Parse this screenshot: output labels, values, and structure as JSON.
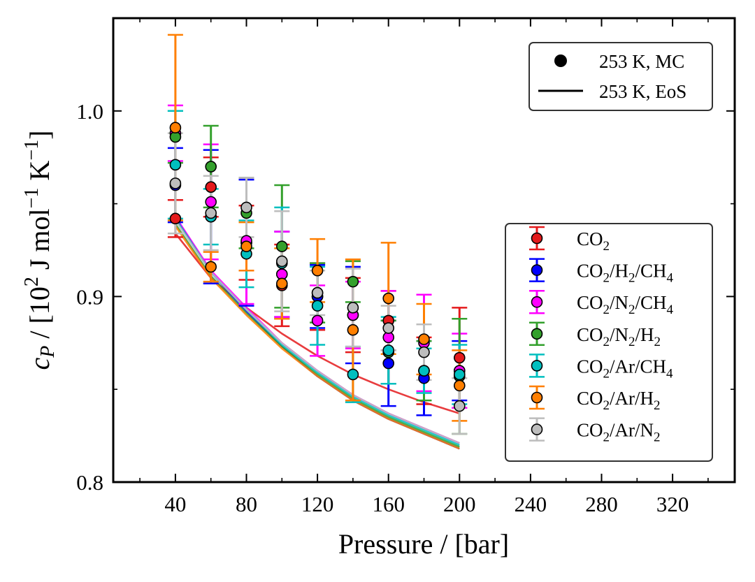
{
  "chart_data": {
    "type": "scatter",
    "xlabel": "Pressure / [bar]",
    "ylabel": "c_P / [10^2 J mol^-1 K^-1]",
    "ylabel_parts": {
      "var": "c",
      "var_sub": "P",
      "open": "/ [10",
      "pow": "2",
      "unit": " J mol",
      "pow2": "−1",
      "unit2": " K",
      "pow3": "−1",
      "close": "]"
    },
    "xlim": [
      5,
      355
    ],
    "ylim": [
      0.8,
      1.05
    ],
    "xticks": [
      40,
      80,
      120,
      160,
      200,
      240,
      280,
      320
    ],
    "xtick_labels": [
      "40",
      "80",
      "120",
      "160",
      "200",
      "240",
      "280",
      "320"
    ],
    "yticks": [
      0.8,
      0.9,
      1.0
    ],
    "ytick_labels": [
      "0.8",
      "0.9",
      "1.0"
    ],
    "legend_style": {
      "entries": [
        {
          "marker": "filled-circle",
          "label": "253 K, MC",
          "color": "#000000"
        },
        {
          "marker": "line",
          "label": "253 K, EoS",
          "color": "#000000"
        }
      ],
      "placement": "top-right"
    },
    "series": [
      {
        "name": "CO₂",
        "label_main": "CO",
        "sub": [
          "2"
        ],
        "label_parts": [
          "CO",
          "2"
        ],
        "color": "#e41a1c",
        "x": [
          40,
          60,
          80,
          100,
          120,
          140,
          160,
          180,
          200
        ],
        "y": [
          0.942,
          0.959,
          0.929,
          0.906,
          0.9,
          0.89,
          0.887,
          0.86,
          0.867
        ],
        "err": [
          0.01,
          0.016,
          0.02,
          0.022,
          0.018,
          0.02,
          0.016,
          0.018,
          0.027
        ],
        "eos": [
          0.934,
          0.91,
          0.894,
          0.88,
          0.868,
          0.858,
          0.85,
          0.843,
          0.837
        ]
      },
      {
        "name": "CO₂/H₂/CH₄",
        "label_parts": [
          "CO",
          "2",
          "/H",
          "2",
          "/CH",
          "4"
        ],
        "color": "#0000ff",
        "x": [
          40,
          60,
          80,
          100,
          120,
          140,
          160,
          180,
          200
        ],
        "y": [
          0.96,
          0.943,
          0.929,
          0.912,
          0.9,
          0.89,
          0.864,
          0.856,
          0.86
        ],
        "err": [
          0.02,
          0.036,
          0.034,
          0.023,
          0.017,
          0.026,
          0.023,
          0.02,
          0.016
        ],
        "eos": [
          0.943,
          0.913,
          0.892,
          0.873,
          0.857,
          0.844,
          0.834,
          0.826,
          0.818
        ]
      },
      {
        "name": "CO₂/N₂/CH₄",
        "label_parts": [
          "CO",
          "2",
          "/N",
          "2",
          "/CH",
          "4"
        ],
        "color": "#ff00ff",
        "x": [
          40,
          60,
          80,
          100,
          120,
          140,
          160,
          180,
          200
        ],
        "y": [
          0.988,
          0.951,
          0.93,
          0.912,
          0.887,
          0.89,
          0.878,
          0.875,
          0.86
        ],
        "err": [
          0.015,
          0.031,
          0.034,
          0.023,
          0.019,
          0.018,
          0.025,
          0.026,
          0.02
        ],
        "eos": [
          0.943,
          0.914,
          0.894,
          0.875,
          0.86,
          0.847,
          0.837,
          0.829,
          0.821
        ]
      },
      {
        "name": "CO₂/N₂/H₂",
        "label_parts": [
          "CO",
          "2",
          "/N",
          "2",
          "/H",
          "2"
        ],
        "color": "#33a02c",
        "x": [
          40,
          60,
          80,
          100,
          120,
          140,
          160,
          180,
          200
        ],
        "y": [
          0.986,
          0.97,
          0.945,
          0.927,
          0.902,
          0.908,
          0.87,
          0.86,
          0.857
        ],
        "err": [
          0.014,
          0.022,
          0.019,
          0.033,
          0.016,
          0.011,
          0.017,
          0.016,
          0.031
        ],
        "eos": [
          0.939,
          0.911,
          0.891,
          0.873,
          0.858,
          0.845,
          0.835,
          0.827,
          0.819
        ]
      },
      {
        "name": "CO₂/Ar/CH₄",
        "label_parts": [
          "CO",
          "2",
          "/Ar/CH",
          "4"
        ],
        "color": "#00bfbf",
        "x": [
          40,
          60,
          80,
          100,
          120,
          140,
          160,
          180,
          200
        ],
        "y": [
          0.971,
          0.943,
          0.923,
          0.918,
          0.895,
          0.858,
          0.871,
          0.86,
          0.858
        ],
        "err": [
          0.029,
          0.015,
          0.018,
          0.03,
          0.021,
          0.015,
          0.018,
          0.012,
          0.016
        ],
        "eos": [
          0.942,
          0.913,
          0.893,
          0.874,
          0.859,
          0.846,
          0.836,
          0.828,
          0.82
        ]
      },
      {
        "name": "CO₂/Ar/H₂",
        "label_parts": [
          "CO",
          "2",
          "/Ar/H",
          "2"
        ],
        "color": "#ff7f00",
        "x": [
          40,
          60,
          80,
          100,
          120,
          140,
          160,
          180,
          200
        ],
        "y": [
          0.991,
          0.916,
          0.927,
          0.907,
          0.914,
          0.882,
          0.899,
          0.877,
          0.852
        ],
        "err": [
          0.05,
          0.008,
          0.013,
          0.019,
          0.017,
          0.038,
          0.03,
          0.019,
          0.019
        ],
        "eos": [
          0.938,
          0.91,
          0.89,
          0.872,
          0.857,
          0.844,
          0.834,
          0.826,
          0.818
        ]
      },
      {
        "name": "CO₂/Ar/N₂",
        "label_parts": [
          "CO",
          "2",
          "/Ar/N",
          "2"
        ],
        "color": "#bdbdbd",
        "x": [
          40,
          60,
          80,
          100,
          120,
          140,
          160,
          180,
          200
        ],
        "y": [
          0.961,
          0.945,
          0.948,
          0.919,
          0.902,
          0.894,
          0.883,
          0.87,
          0.841
        ],
        "err": [
          0.027,
          0.02,
          0.016,
          0.027,
          0.012,
          0.021,
          0.012,
          0.015,
          0.015
        ],
        "eos": [
          0.941,
          0.913,
          0.893,
          0.875,
          0.86,
          0.847,
          0.837,
          0.829,
          0.821
        ]
      }
    ]
  }
}
